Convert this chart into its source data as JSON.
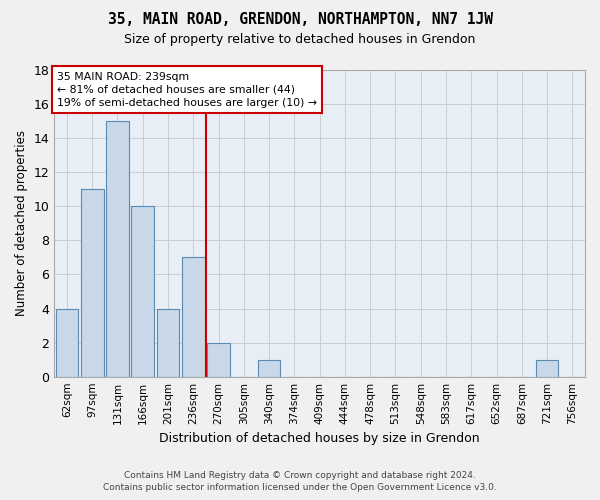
{
  "title": "35, MAIN ROAD, GRENDON, NORTHAMPTON, NN7 1JW",
  "subtitle": "Size of property relative to detached houses in Grendon",
  "xlabel": "Distribution of detached houses by size in Grendon",
  "ylabel": "Number of detached properties",
  "categories": [
    "62sqm",
    "97sqm",
    "131sqm",
    "166sqm",
    "201sqm",
    "236sqm",
    "270sqm",
    "305sqm",
    "340sqm",
    "374sqm",
    "409sqm",
    "444sqm",
    "478sqm",
    "513sqm",
    "548sqm",
    "583sqm",
    "617sqm",
    "652sqm",
    "687sqm",
    "721sqm",
    "756sqm"
  ],
  "values": [
    4,
    11,
    15,
    10,
    4,
    7,
    2,
    0,
    1,
    0,
    0,
    0,
    0,
    0,
    0,
    0,
    0,
    0,
    0,
    1,
    0
  ],
  "bar_color": "#c8d8e8",
  "bar_edge_color": "#5a8ab0",
  "vline_x": 5.5,
  "annotation_text_line1": "35 MAIN ROAD: 239sqm",
  "annotation_text_line2": "← 81% of detached houses are smaller (44)",
  "annotation_text_line3": "19% of semi-detached houses are larger (10) →",
  "annotation_box_color": "#ffffff",
  "annotation_box_edge_color": "#cc0000",
  "vline_color": "#cc0000",
  "ylim": [
    0,
    18
  ],
  "yticks": [
    0,
    2,
    4,
    6,
    8,
    10,
    12,
    14,
    16,
    18
  ],
  "grid_color": "#cccccc",
  "bg_color": "#e8eef5",
  "footer_line1": "Contains HM Land Registry data © Crown copyright and database right 2024.",
  "footer_line2": "Contains public sector information licensed under the Open Government Licence v3.0."
}
